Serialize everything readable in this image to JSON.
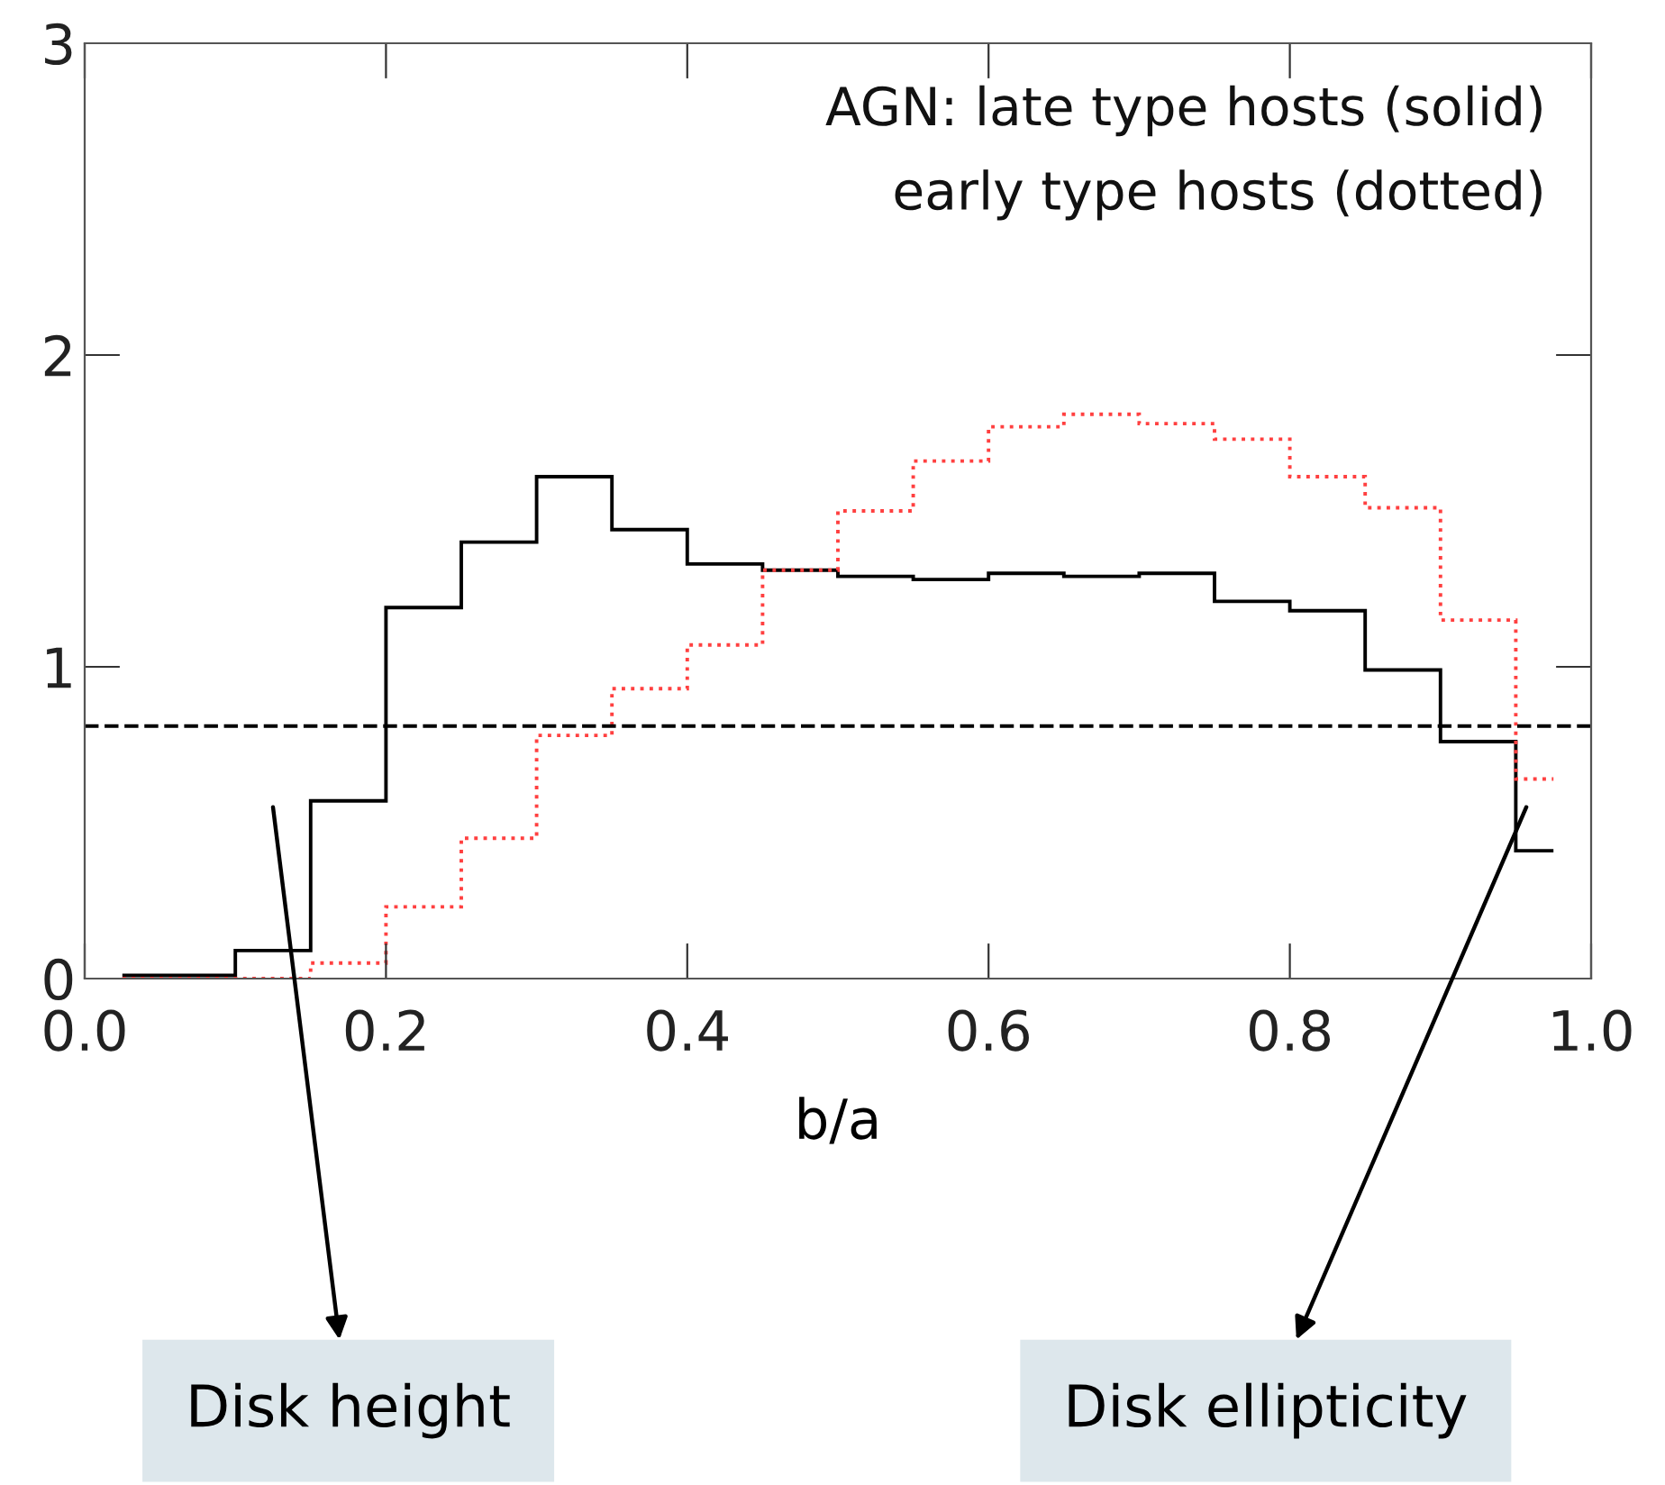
{
  "chart_data": {
    "type": "histogram",
    "xlabel": "b/a",
    "bins": [
      0.025,
      0.1,
      0.15,
      0.2,
      0.25,
      0.3,
      0.35,
      0.4,
      0.45,
      0.5,
      0.55,
      0.6,
      0.65,
      0.7,
      0.75,
      0.8,
      0.85,
      0.9,
      0.95,
      0.975
    ],
    "series": [
      {
        "color": "#000000",
        "line_style": "solid",
        "values": [
          0.01,
          0.09,
          0.57,
          1.19,
          1.4,
          1.61,
          1.44,
          1.33,
          1.31,
          1.29,
          1.28,
          1.3,
          1.29,
          1.3,
          1.21,
          1.18,
          0.99,
          0.76,
          0.41
        ]
      },
      {
        "color": "#ff4040",
        "line_style": "dotted",
        "values": [
          0.0,
          0.0,
          0.05,
          0.23,
          0.45,
          0.78,
          0.93,
          1.07,
          1.31,
          1.5,
          1.66,
          1.77,
          1.81,
          1.78,
          1.73,
          1.61,
          1.51,
          1.15,
          0.64
        ]
      }
    ],
    "xlim": [
      0,
      1
    ],
    "ylim": [
      0,
      3
    ],
    "xticks": [
      {
        "value": 0,
        "label": "0.0"
      },
      0.2,
      0.4,
      0.6,
      0.8,
      {
        "value": 1,
        "label": "1.0"
      }
    ],
    "yticks": [
      0,
      1,
      2,
      3
    ],
    "ref_lines": [
      {
        "axis": "y",
        "value": 0.81,
        "color": "#000000",
        "line_style": "dashed"
      }
    ],
    "grid": false,
    "legend": false,
    "annotations": [
      "AGN: late type hosts (solid)",
      "early type hosts (dotted)",
      "Disk height",
      "Disk ellipticity"
    ]
  }
}
